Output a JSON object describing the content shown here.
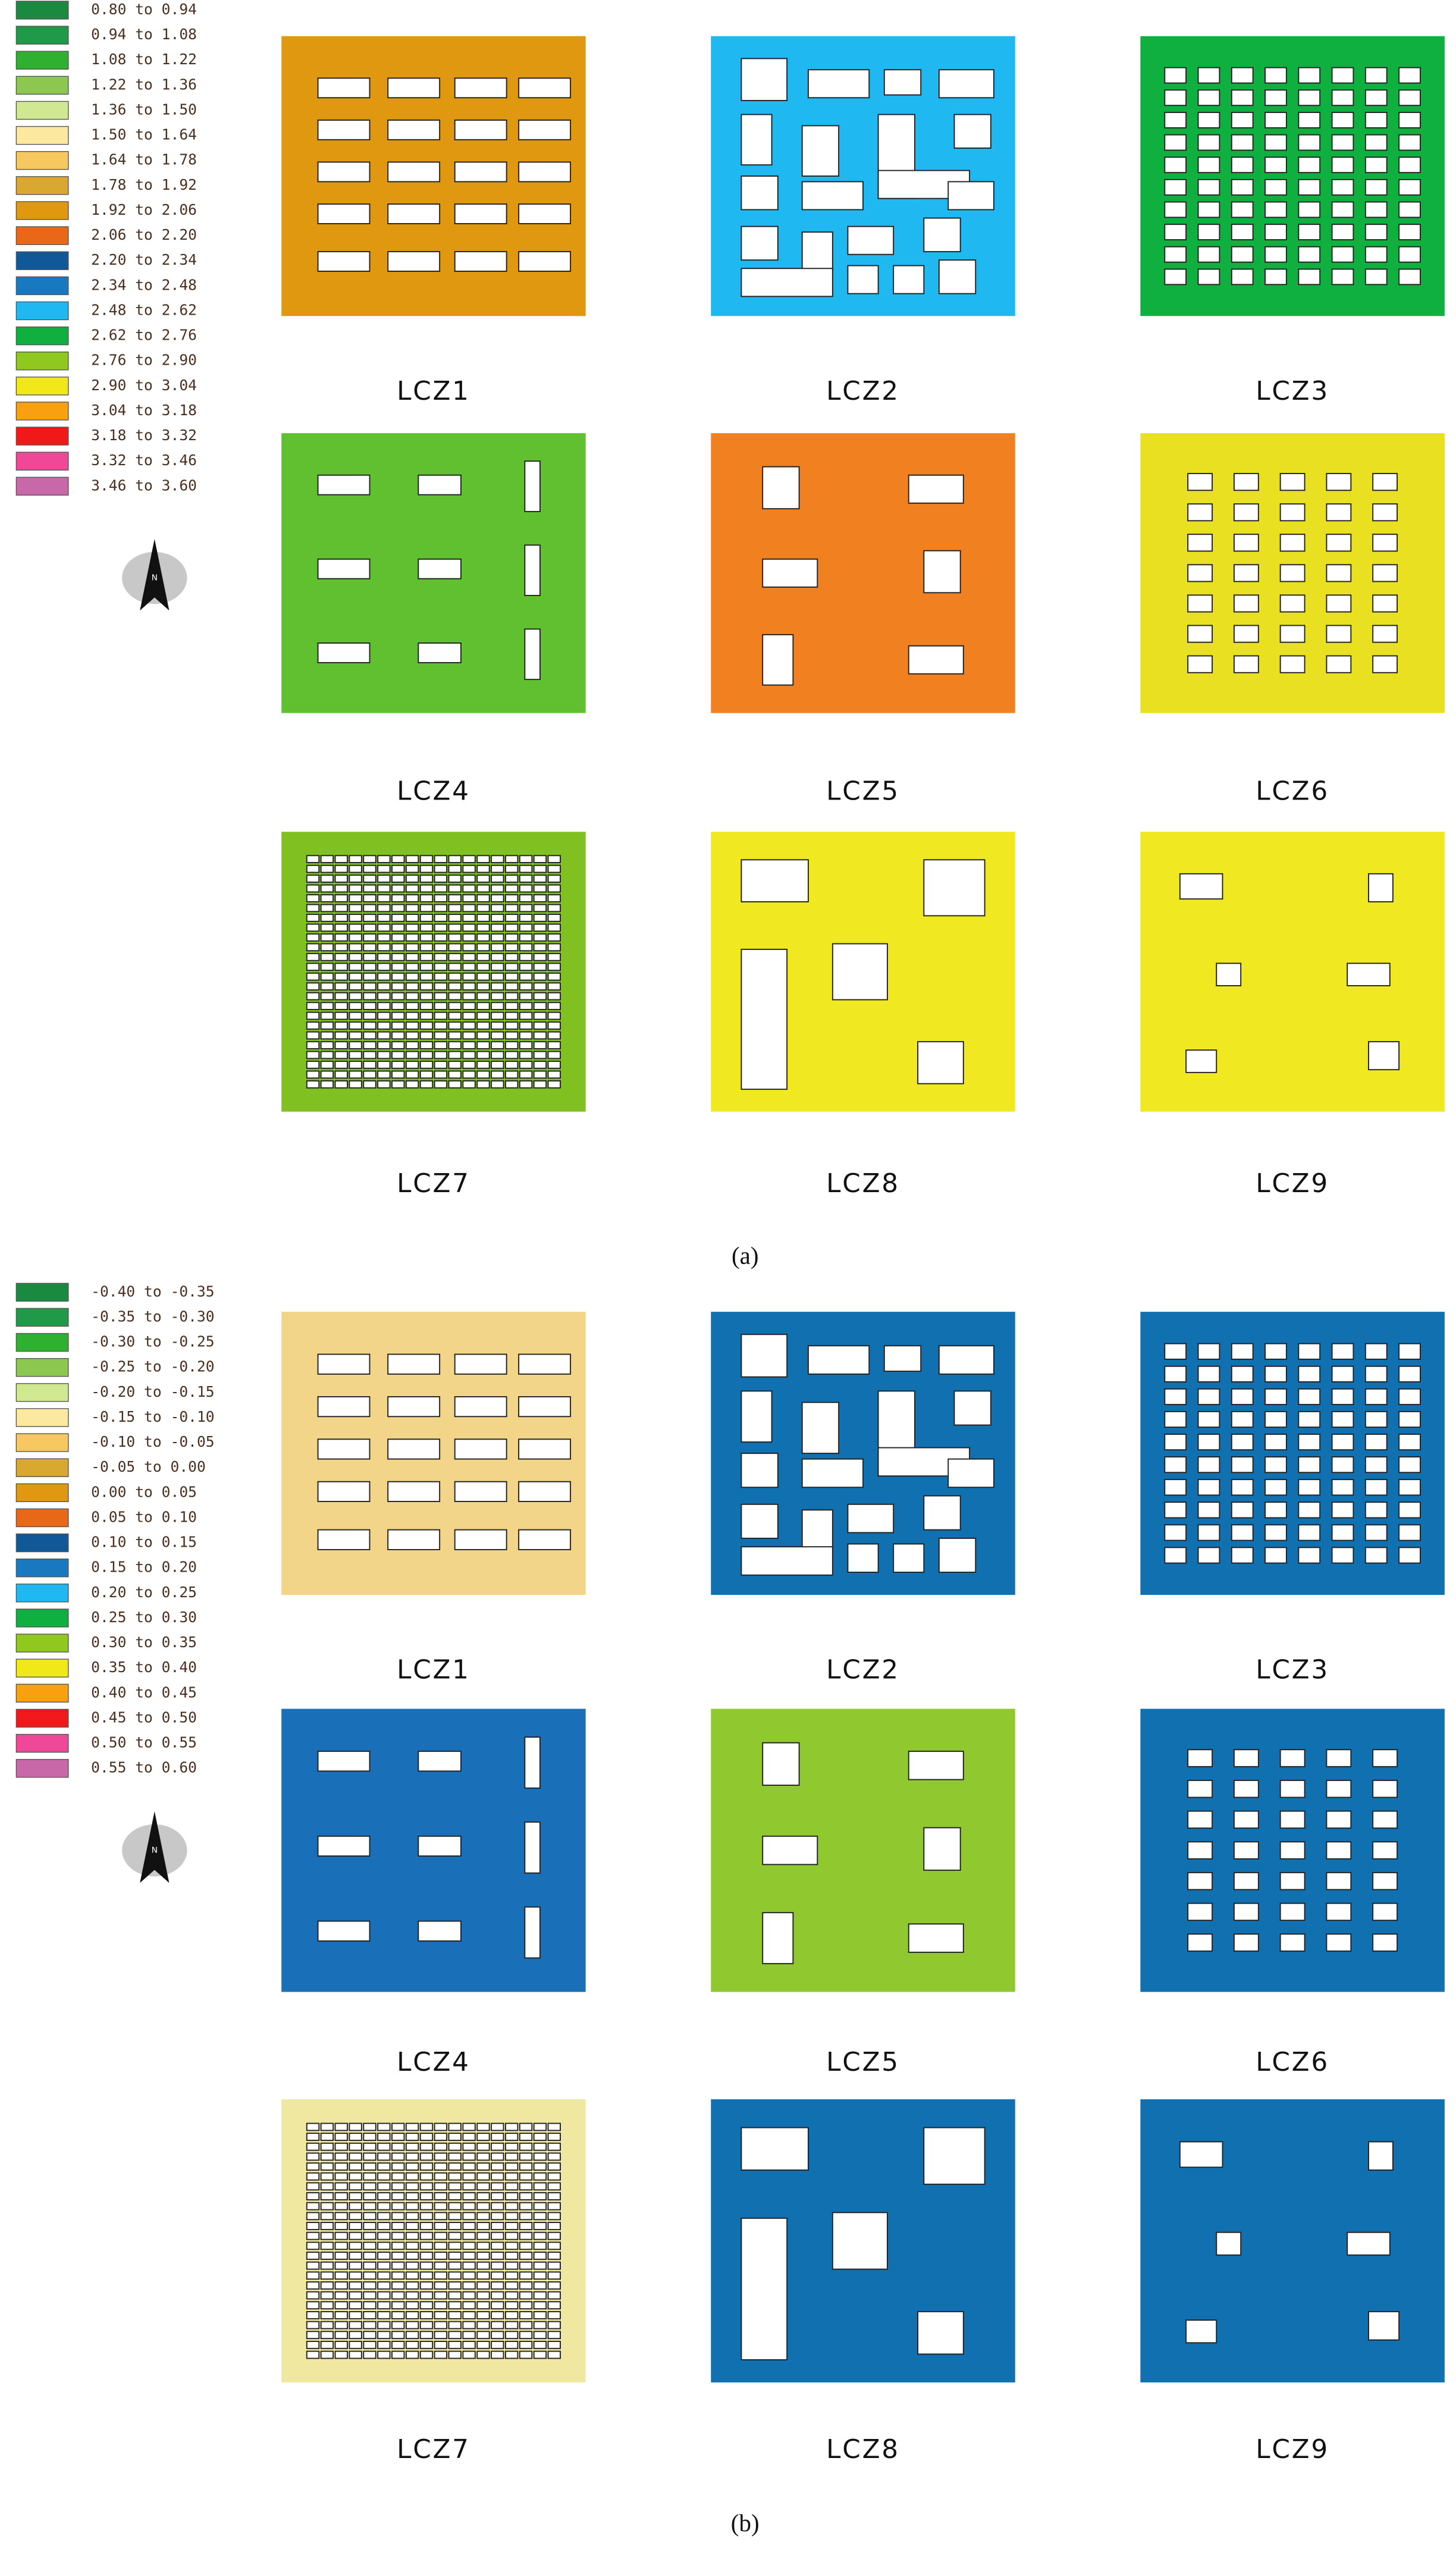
{
  "figures": [
    {
      "legend": [
        {
          "label": "0.80 to 0.94",
          "color": "#1a8a40"
        },
        {
          "label": "0.94 to 1.08",
          "color": "#209a48"
        },
        {
          "label": "1.08 to 1.22",
          "color": "#30b030"
        },
        {
          "label": "1.22 to 1.36",
          "color": "#8cc850"
        },
        {
          "label": "1.36 to 1.50",
          "color": "#d0e890"
        },
        {
          "label": "1.50 to 1.64",
          "color": "#fde8a0"
        },
        {
          "label": "1.64 to 1.78",
          "color": "#f8c860"
        },
        {
          "label": "1.78 to 1.92",
          "color": "#d8a830"
        },
        {
          "label": "1.92 to 2.06",
          "color": "#e09810"
        },
        {
          "label": "2.06 to 2.20",
          "color": "#e86818"
        },
        {
          "label": "2.20 to 2.34",
          "color": "#105898"
        },
        {
          "label": "2.34 to 2.48",
          "color": "#1878c0"
        },
        {
          "label": "2.48 to 2.62",
          "color": "#20b8f0"
        },
        {
          "label": "2.62 to 2.76",
          "color": "#10b040"
        },
        {
          "label": "2.76 to 2.90",
          "color": "#90c820"
        },
        {
          "label": "2.90 to 3.04",
          "color": "#f0e818"
        },
        {
          "label": "3.04 to 3.18",
          "color": "#f8a010"
        },
        {
          "label": "3.18 to 3.32",
          "color": "#f01818"
        },
        {
          "label": "3.32 to 3.46",
          "color": "#f04898"
        },
        {
          "label": "3.46 to 3.60",
          "color": "#c868a8"
        }
      ],
      "compass_label": "N",
      "panels": [
        {
          "label": "LCZ1",
          "color": "#e09810"
        },
        {
          "label": "LCZ2",
          "color": "#20b8f0"
        },
        {
          "label": "LCZ3",
          "color": "#10b040"
        },
        {
          "label": "LCZ4",
          "color": "#60c030"
        },
        {
          "label": "LCZ5",
          "color": "#f08020"
        },
        {
          "label": "LCZ6",
          "color": "#e8e020"
        },
        {
          "label": "LCZ7",
          "color": "#80c020"
        },
        {
          "label": "LCZ8",
          "color": "#f0e820"
        },
        {
          "label": "LCZ9",
          "color": "#f0e820"
        }
      ],
      "caption": "(a)"
    },
    {
      "legend": [
        {
          "label": "-0.40 to -0.35",
          "color": "#1a8a40"
        },
        {
          "label": "-0.35 to -0.30",
          "color": "#209a48"
        },
        {
          "label": "-0.30 to -0.25",
          "color": "#30b030"
        },
        {
          "label": "-0.25 to -0.20",
          "color": "#8cc850"
        },
        {
          "label": "-0.20 to -0.15",
          "color": "#d0e890"
        },
        {
          "label": "-0.15 to -0.10",
          "color": "#fde8a0"
        },
        {
          "label": "-0.10 to -0.05",
          "color": "#f8c860"
        },
        {
          "label": "-0.05 to 0.00",
          "color": "#d8a830"
        },
        {
          "label": "0.00 to 0.05",
          "color": "#e09810"
        },
        {
          "label": "0.05 to 0.10",
          "color": "#e86818"
        },
        {
          "label": "0.10 to 0.15",
          "color": "#105898"
        },
        {
          "label": "0.15 to 0.20",
          "color": "#1878c0"
        },
        {
          "label": "0.20 to 0.25",
          "color": "#20b8f0"
        },
        {
          "label": "0.25 to 0.30",
          "color": "#10b040"
        },
        {
          "label": "0.30 to 0.35",
          "color": "#90c820"
        },
        {
          "label": "0.35 to 0.40",
          "color": "#f0e818"
        },
        {
          "label": "0.40 to 0.45",
          "color": "#f8a010"
        },
        {
          "label": "0.45 to 0.50",
          "color": "#f01818"
        },
        {
          "label": "0.50 to 0.55",
          "color": "#f04898"
        },
        {
          "label": "0.55 to 0.60",
          "color": "#c868a8"
        }
      ],
      "compass_label": "N",
      "panels": [
        {
          "label": "LCZ1",
          "color": "#f3d58a"
        },
        {
          "label": "LCZ2",
          "color": "#1070b0"
        },
        {
          "label": "LCZ3",
          "color": "#1070b0"
        },
        {
          "label": "LCZ4",
          "color": "#1a70b8"
        },
        {
          "label": "LCZ5",
          "color": "#90c830"
        },
        {
          "label": "LCZ6",
          "color": "#1070b0"
        },
        {
          "label": "LCZ7",
          "color": "#f0e8a0"
        },
        {
          "label": "LCZ8",
          "color": "#1070b0"
        },
        {
          "label": "LCZ9",
          "color": "#1070b0"
        }
      ],
      "caption": "(b)"
    }
  ]
}
